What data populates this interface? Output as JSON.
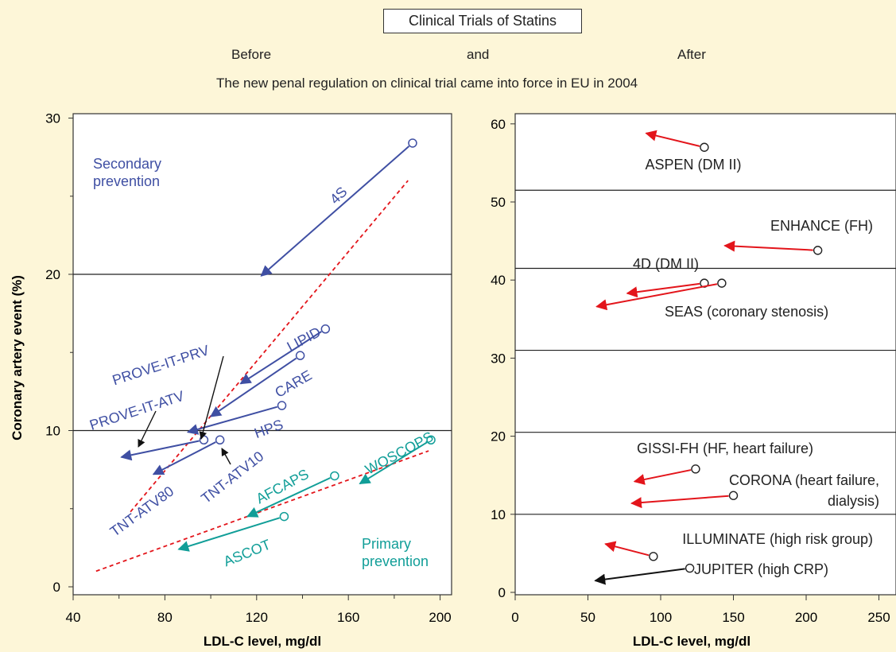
{
  "header": {
    "title": "Clinical Trials of Statins",
    "before": "Before",
    "and": "and",
    "after": "After",
    "subtitle": "The new penal regulation on clinical trial came into force in EU in 2004"
  },
  "colors": {
    "background": "#fdf6d8",
    "blue": "#3f4fa3",
    "teal": "#119e98",
    "red": "#e3151b",
    "black": "#111111"
  },
  "chart_data": [
    {
      "type": "scatter",
      "xlabel": "LDL-C level, mg/dl",
      "ylabel": "Coronary artery event (%)",
      "xlim": [
        40,
        205
      ],
      "ylim": [
        -0.5,
        31
      ],
      "xticks": [
        40,
        80,
        120,
        160,
        200
      ],
      "yticks": [
        0,
        10,
        20,
        30
      ],
      "hlines": [
        10,
        20
      ],
      "annotations": [
        "Secondary prevention",
        "Primary prevention"
      ],
      "fit_lines": [
        {
          "name": "secondary",
          "from": [
            65,
            4.8
          ],
          "to": [
            186,
            26
          ]
        },
        {
          "name": "primary",
          "from": [
            50,
            1
          ],
          "to": [
            195,
            8.7
          ]
        }
      ],
      "trials": [
        {
          "label": "4S",
          "group": "secondary",
          "color": "#3f4fa3",
          "before": [
            188,
            28.4
          ],
          "after": [
            122,
            19.9
          ]
        },
        {
          "label": "LIPID",
          "group": "secondary",
          "color": "#3f4fa3",
          "before": [
            150,
            16.5
          ],
          "after": [
            113,
            13
          ]
        },
        {
          "label": "CARE",
          "group": "secondary",
          "color": "#3f4fa3",
          "before": [
            139,
            14.8
          ],
          "after": [
            100,
            10.9
          ]
        },
        {
          "label": "HPS",
          "group": "secondary",
          "color": "#3f4fa3",
          "before": [
            131,
            11.6
          ],
          "after": [
            90,
            9.9
          ]
        },
        {
          "label": "PROVE-IT-PRV",
          "group": "secondary",
          "color": "#3f4fa3",
          "before": null,
          "after": null
        },
        {
          "label": "PROVE-IT-ATV",
          "group": "secondary",
          "color": "#3f4fa3",
          "before": null,
          "after": null
        },
        {
          "label": "TNT-ATV80",
          "group": "secondary",
          "color": "#3f4fa3",
          "before": [
            97,
            9.4
          ],
          "after": [
            61,
            8.3
          ]
        },
        {
          "label": "TNT-ATV10",
          "group": "secondary",
          "color": "#3f4fa3",
          "before": [
            104,
            9.4
          ],
          "after": [
            75,
            7.2
          ]
        },
        {
          "label": "WOSCOPS",
          "group": "primary",
          "color": "#119e98",
          "before": [
            196,
            9.4
          ],
          "after": [
            165,
            6.6
          ]
        },
        {
          "label": "AFCAPS",
          "group": "primary",
          "color": "#119e98",
          "before": [
            154,
            7.1
          ],
          "after": [
            116,
            4.5
          ]
        },
        {
          "label": "ASCOT",
          "group": "primary",
          "color": "#119e98",
          "before": [
            132,
            4.5
          ],
          "after": [
            86,
            2.4
          ]
        }
      ]
    },
    {
      "type": "scatter",
      "xlabel": "LDL-C level, mg/dl",
      "ylabel": "",
      "xlim": [
        0,
        250
      ],
      "ylim": [
        0,
        61
      ],
      "xticks": [
        0,
        50,
        100,
        150,
        200,
        250
      ],
      "yticks": [
        0,
        10,
        20,
        30,
        40,
        50,
        60
      ],
      "hlines": [
        10,
        20.5,
        31,
        41.5,
        51.5
      ],
      "trials": [
        {
          "label": "ASPEN (DM II)",
          "color": "#e3151b",
          "before": [
            130,
            57
          ],
          "after": [
            90,
            58.8
          ]
        },
        {
          "label": "ENHANCE (FH)",
          "color": "#e3151b",
          "before": [
            208,
            43.8
          ],
          "after": [
            144,
            44.4
          ]
        },
        {
          "label": "4D (DM II)",
          "color": "#e3151b",
          "before": [
            130,
            39.6
          ],
          "after": [
            77,
            38.3
          ]
        },
        {
          "label": "SEAS (coronary stenosis)",
          "color": "#e3151b",
          "before": [
            142,
            39.6
          ],
          "after": [
            56,
            36.6
          ]
        },
        {
          "label": "GISSI-FH (HF, heart failure)",
          "color": "#e3151b",
          "before": [
            124,
            15.8
          ],
          "after": [
            82,
            14.2
          ]
        },
        {
          "label": "CORONA (heart failure, dialysis)",
          "color": "#e3151b",
          "before": [
            150,
            12.4
          ],
          "after": [
            80,
            11.4
          ]
        },
        {
          "label": "ILLUMINATE (high risk group)",
          "color": "#e3151b",
          "before": [
            95,
            4.6
          ],
          "after": [
            62,
            6.2
          ]
        },
        {
          "label": "JUPITER (high CRP)",
          "color": "#111111",
          "before": [
            120,
            3.1
          ],
          "after": [
            55,
            1.5
          ]
        }
      ]
    }
  ]
}
